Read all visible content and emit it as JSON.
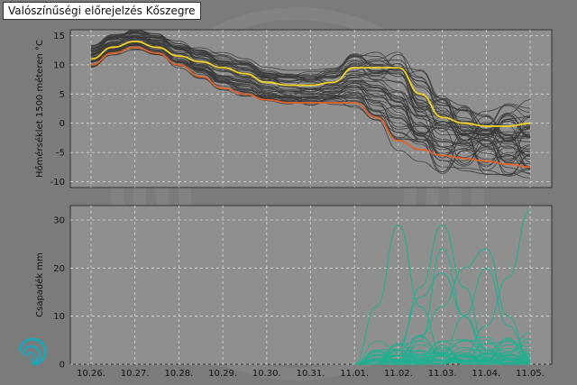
{
  "page": {
    "title": "Valószínűségi előrejelzés Kőszegre",
    "background_color": "#7b7b7b",
    "logo_icon": "swirl-logo-icon",
    "logo_color": "#1aa6b7"
  },
  "chart_data": [
    {
      "type": "line",
      "ylabel": "Hőmérséklet 1500 méteren °C",
      "ylim": [
        -11,
        16
      ],
      "yticks": [
        -10,
        -5,
        0,
        5,
        10,
        15
      ],
      "categories": [
        "10.26.",
        "10.27.",
        "10.28.",
        "10.29.",
        "10.30.",
        "10.31.",
        "11.01.",
        "11.02.",
        "11.03.",
        "11.04.",
        "11.05."
      ],
      "grid": true,
      "plot_background": "#8f8f8f",
      "x": [
        0,
        0.5,
        1,
        1.5,
        2,
        2.5,
        3,
        3.5,
        4,
        4.5,
        5,
        5.5,
        6,
        6.5,
        7,
        7.5,
        8,
        8.5,
        9,
        9.5,
        10
      ],
      "series": [
        {
          "role": "highlight",
          "color": "#f2d024",
          "values": [
            11,
            13,
            14,
            13,
            11.5,
            10.5,
            9.5,
            8.5,
            7,
            6.5,
            6.5,
            7,
            9.5,
            9.5,
            9.5,
            5,
            1,
            0,
            -0.5,
            -0.5,
            0
          ]
        },
        {
          "role": "highlight",
          "color": "#e0622a",
          "values": [
            10,
            12,
            13,
            12,
            10,
            8,
            6,
            5,
            4,
            3.5,
            3.5,
            3.5,
            3.5,
            1,
            -3,
            -4.5,
            -5.5,
            -6,
            -6.5,
            -7,
            -7.5
          ]
        }
      ],
      "ensemble": {
        "color": "#3a3a3a",
        "members": 50
      }
    },
    {
      "type": "line",
      "ylabel": "Csapadék mm",
      "ylim": [
        0,
        33
      ],
      "yticks": [
        0,
        10,
        20,
        30
      ],
      "categories": [
        "10.26.",
        "10.27.",
        "10.28.",
        "10.29.",
        "10.30.",
        "10.31.",
        "11.01.",
        "11.02.",
        "11.03.",
        "11.04.",
        "11.05."
      ],
      "grid": true,
      "plot_background": "#8f8f8f",
      "x": [
        6,
        6.5,
        7,
        7.5,
        8,
        8.5,
        9,
        9.5,
        10
      ],
      "series": [
        {
          "role": "peak",
          "values": [
            0,
            12,
            29,
            12,
            2,
            0,
            0,
            0,
            0
          ]
        },
        {
          "role": "peak",
          "values": [
            0,
            0,
            3,
            16,
            29,
            16,
            3,
            0,
            0
          ]
        },
        {
          "role": "peak",
          "values": [
            0,
            0,
            0,
            5,
            24,
            10,
            1,
            0,
            0
          ]
        },
        {
          "role": "peak",
          "values": [
            0,
            0,
            1,
            6,
            12,
            20,
            24,
            10,
            1
          ]
        },
        {
          "role": "peak",
          "values": [
            0,
            0,
            0,
            0,
            2,
            10,
            20,
            8,
            1
          ]
        },
        {
          "role": "peak",
          "values": [
            0,
            0,
            0,
            0,
            0,
            2,
            8,
            18,
            32
          ]
        },
        {
          "role": "peak",
          "values": [
            0,
            1,
            4,
            14,
            19,
            10,
            3,
            0,
            0
          ]
        }
      ],
      "ensemble": {
        "color": "#20b090",
        "members": 30
      }
    }
  ]
}
